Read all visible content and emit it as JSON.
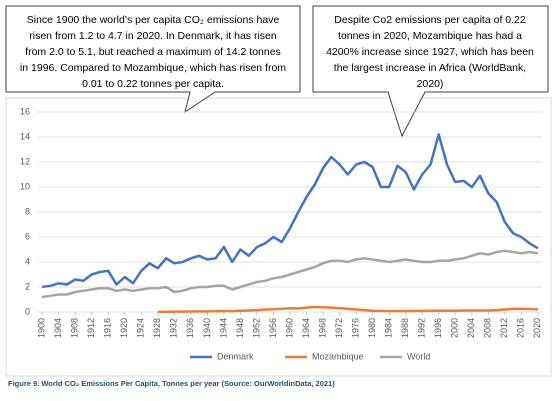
{
  "chart_data": {
    "type": "line",
    "annotations": [
      {
        "lines": [
          "Since 1900 the world’s per capita CO₂ emissions have",
          "risen from 1.2 to 4.7 in 2020. In Denmark, it has risen",
          "from 2.0 to 5.1, but reached a maximum of 14.2 tonnes",
          "in 1996. Compared to Mozambique, which has risen from",
          "0.01 to 0.22 tonnes per capita."
        ]
      },
      {
        "lines": [
          "Despite Co2 emissions per capita of 0.22",
          "tonnes in 2020, Mozambique has had a",
          "4200% increase since 1927, which has been",
          "the largest increase in Africa (WorldBank,",
          "2020)"
        ]
      }
    ],
    "caption": "Figure 9. World CO₂ Emissions Per Capita, Tonnes per year (Source: OurWorldinData, 2021)",
    "x": [
      1900,
      1902,
      1904,
      1906,
      1908,
      1910,
      1912,
      1914,
      1916,
      1918,
      1920,
      1922,
      1924,
      1926,
      1928,
      1930,
      1932,
      1934,
      1936,
      1938,
      1940,
      1942,
      1944,
      1946,
      1948,
      1950,
      1952,
      1954,
      1956,
      1958,
      1960,
      1962,
      1964,
      1966,
      1968,
      1970,
      1972,
      1974,
      1976,
      1978,
      1980,
      1982,
      1984,
      1986,
      1988,
      1990,
      1992,
      1994,
      1996,
      1998,
      2000,
      2002,
      2004,
      2006,
      2008,
      2010,
      2012,
      2014,
      2016,
      2018,
      2020
    ],
    "series": [
      {
        "name": "Denmark",
        "color": "#4472c4",
        "values": [
          2.0,
          2.1,
          2.3,
          2.2,
          2.6,
          2.5,
          3.0,
          3.2,
          3.3,
          2.2,
          2.8,
          2.3,
          3.3,
          3.9,
          3.5,
          4.3,
          3.9,
          4.0,
          4.3,
          4.5,
          4.2,
          4.3,
          5.2,
          4.0,
          5.0,
          4.5,
          5.2,
          5.5,
          6.0,
          5.6,
          6.7,
          8.0,
          9.2,
          10.2,
          11.5,
          12.4,
          11.8,
          11.0,
          11.8,
          12.0,
          11.6,
          10.0,
          10.0,
          11.7,
          11.2,
          9.8,
          11.0,
          11.8,
          14.2,
          11.8,
          10.4,
          10.5,
          10.0,
          10.9,
          9.5,
          8.8,
          7.2,
          6.3,
          6.0,
          5.5,
          5.1
        ]
      },
      {
        "name": "Mozambique",
        "color": "#ed7d31",
        "values": [
          null,
          null,
          null,
          null,
          null,
          null,
          null,
          null,
          null,
          null,
          null,
          null,
          null,
          null,
          0.01,
          0.02,
          0.03,
          0.03,
          0.04,
          0.05,
          0.05,
          0.06,
          0.08,
          0.07,
          0.1,
          0.12,
          0.15,
          0.2,
          0.22,
          0.25,
          0.3,
          0.28,
          0.35,
          0.4,
          0.38,
          0.35,
          0.3,
          0.25,
          0.2,
          0.15,
          0.1,
          0.08,
          0.08,
          0.07,
          0.08,
          0.08,
          0.09,
          0.1,
          0.1,
          0.1,
          0.1,
          0.12,
          0.12,
          0.12,
          0.12,
          0.15,
          0.2,
          0.25,
          0.25,
          0.24,
          0.22
        ]
      },
      {
        "name": "World",
        "color": "#a5a5a5",
        "values": [
          1.2,
          1.3,
          1.4,
          1.4,
          1.6,
          1.7,
          1.8,
          1.9,
          1.9,
          1.7,
          1.8,
          1.7,
          1.8,
          1.9,
          1.9,
          2.0,
          1.6,
          1.7,
          1.9,
          2.0,
          2.0,
          2.1,
          2.1,
          1.8,
          2.0,
          2.2,
          2.4,
          2.5,
          2.7,
          2.8,
          3.0,
          3.2,
          3.4,
          3.6,
          3.9,
          4.1,
          4.1,
          4.0,
          4.2,
          4.3,
          4.2,
          4.1,
          4.0,
          4.1,
          4.2,
          4.1,
          4.0,
          4.0,
          4.1,
          4.1,
          4.2,
          4.3,
          4.5,
          4.7,
          4.6,
          4.8,
          4.9,
          4.8,
          4.7,
          4.8,
          4.7
        ]
      }
    ],
    "xlim": [
      1899,
      2021
    ],
    "xticks": [
      1900,
      1904,
      1908,
      1912,
      1916,
      1920,
      1924,
      1928,
      1932,
      1936,
      1940,
      1944,
      1948,
      1952,
      1956,
      1960,
      1964,
      1968,
      1972,
      1976,
      1980,
      1984,
      1988,
      1992,
      1996,
      2000,
      2004,
      2008,
      2012,
      2016,
      2020
    ],
    "ylim": [
      0,
      16
    ],
    "yticks": [
      0,
      2,
      4,
      6,
      8,
      10,
      12,
      14,
      16
    ],
    "grid": true,
    "legend": "bottom"
  }
}
